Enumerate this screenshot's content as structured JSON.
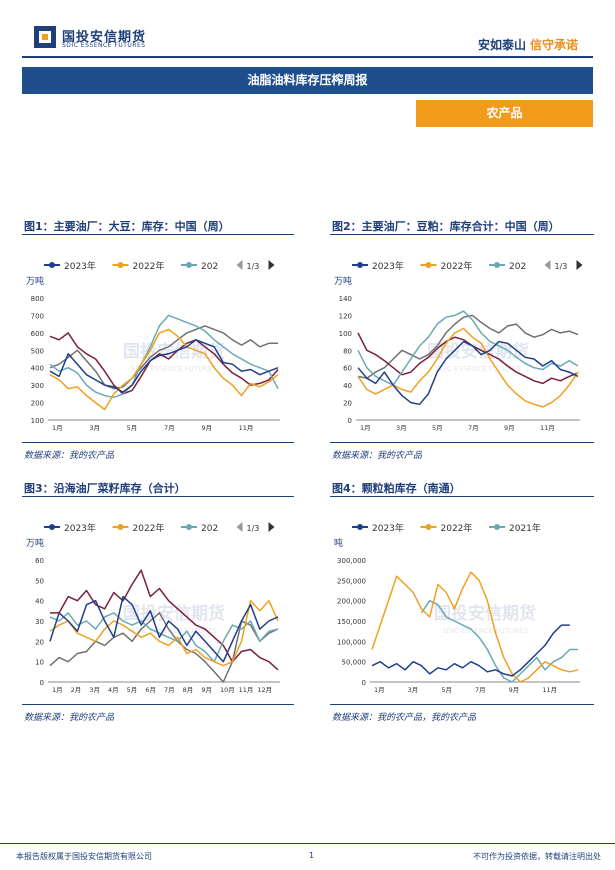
{
  "header": {
    "logo_cn": "国投安信期货",
    "logo_en": "SDIC ESSENCE FUTURES",
    "slogan_part1": "安如泰山",
    "slogan_part2": "信守承诺",
    "banner": "油脂油料库存压榨周报",
    "tag": "农产品"
  },
  "figures": [
    {
      "title": "图1：主要油厂：大豆：库存：中国（周）",
      "source": "数据来源：我的农产品",
      "watermark": "国投安信期货",
      "watermark_en": "SDIC ESSENCE FUTURES",
      "chart_data": {
        "type": "line",
        "unit_label": "万吨",
        "legend": [
          "2023年",
          "2022年",
          "202"
        ],
        "legend_page": "1/3",
        "ylim": [
          100,
          800
        ],
        "yticks": [
          "800",
          "700",
          "600",
          "500",
          "400",
          "300",
          "200",
          "100"
        ],
        "xticks": [
          "1月",
          "3月",
          "5月",
          "7月",
          "9月",
          "11月"
        ],
        "series": [
          {
            "name": "2023年",
            "color": "#1f3f8c",
            "values": [
              380,
              350,
              480,
              420,
              360,
              330,
              300,
              290,
              260,
              300,
              380,
              440,
              470,
              480,
              500,
              520,
              560,
              540,
              520,
              430,
              420,
              380,
              390,
              360,
              380,
              400
            ]
          },
          {
            "name": "2022年",
            "color": "#f0a020",
            "values": [
              360,
              330,
              280,
              290,
              240,
              200,
              160,
              250,
              300,
              340,
              420,
              500,
              600,
              620,
              580,
              520,
              500,
              480,
              400,
              340,
              300,
              240,
              310,
              290,
              320,
              360
            ]
          },
          {
            "name": "202",
            "color": "#6aa9b4",
            "values": [
              420,
              380,
              400,
              370,
              300,
              260,
              240,
              230,
              250,
              300,
              420,
              520,
              640,
              700,
              680,
              660,
              640,
              610,
              560,
              520,
              480,
              450,
              420,
              400,
              380,
              280
            ]
          },
          {
            "name": "",
            "color": "#7a1f3d",
            "values": [
              580,
              560,
              600,
              520,
              480,
              450,
              380,
              300,
              250,
              270,
              350,
              440,
              480,
              450,
              500,
              540,
              560,
              520,
              480,
              420,
              370,
              340,
              300,
              310,
              330,
              390
            ]
          },
          {
            "name": "",
            "color": "#707070",
            "values": [
              400,
              420,
              460,
              500,
              440,
              380,
              300,
              280,
              290,
              340,
              400,
              460,
              500,
              520,
              560,
              600,
              620,
              640,
              620,
              600,
              560,
              530,
              560,
              520,
              540,
              540
            ]
          }
        ]
      }
    },
    {
      "title": "图2：主要油厂：豆粕：库存合计：中国（周）",
      "source": "数据来源：我的农产品",
      "watermark": "国投安信期货",
      "watermark_en": "SDIC ESSENCE FUTURES",
      "chart_data": {
        "type": "line",
        "unit_label": "万吨",
        "legend": [
          "2023年",
          "2022年",
          "202"
        ],
        "legend_page": "1/3",
        "ylim": [
          0,
          140
        ],
        "yticks": [
          "140",
          "120",
          "100",
          "80",
          "60",
          "40",
          "20",
          "0"
        ],
        "xticks": [
          "1月",
          "3月",
          "5月",
          "7月",
          "9月",
          "11月"
        ],
        "series": [
          {
            "name": "2023年",
            "color": "#1f3f8c",
            "values": [
              60,
              48,
              42,
              55,
              40,
              28,
              20,
              18,
              30,
              55,
              70,
              80,
              90,
              85,
              75,
              80,
              90,
              88,
              80,
              72,
              70,
              62,
              68,
              58,
              55,
              50
            ]
          },
          {
            "name": "2022年",
            "color": "#f0a020",
            "values": [
              50,
              35,
              30,
              35,
              40,
              35,
              32,
              45,
              55,
              70,
              88,
              100,
              105,
              95,
              88,
              70,
              55,
              40,
              30,
              22,
              18,
              15,
              20,
              28,
              40,
              55
            ]
          },
          {
            "name": "202",
            "color": "#6aa9b4",
            "values": [
              80,
              60,
              50,
              45,
              40,
              55,
              70,
              85,
              95,
              110,
              118,
              120,
              125,
              115,
              100,
              90,
              85,
              80,
              72,
              65,
              60,
              58,
              65,
              62,
              68,
              62
            ]
          },
          {
            "name": "",
            "color": "#7a1f3d",
            "values": [
              100,
              80,
              75,
              68,
              60,
              52,
              55,
              65,
              72,
              82,
              90,
              95,
              92,
              85,
              80,
              75,
              70,
              62,
              55,
              50,
              45,
              42,
              48,
              45,
              50,
              54
            ]
          },
          {
            "name": "",
            "color": "#707070",
            "values": [
              50,
              48,
              55,
              60,
              70,
              80,
              75,
              70,
              75,
              85,
              100,
              110,
              118,
              120,
              112,
              105,
              100,
              108,
              110,
              100,
              95,
              98,
              104,
              100,
              102,
              98
            ]
          }
        ]
      }
    },
    {
      "title": "图3：沿海油厂菜籽库存（合计）",
      "source": "数据来源：我的农产品",
      "watermark": "国投安信期货",
      "watermark_en": "SDIC ESSENCE FUTURES",
      "chart_data": {
        "type": "line",
        "unit_label": "万吨",
        "legend": [
          "2023年",
          "2022年",
          "202"
        ],
        "legend_page": "1/3",
        "ylim": [
          0,
          60
        ],
        "yticks": [
          "60",
          "50",
          "40",
          "30",
          "20",
          "10",
          "0"
        ],
        "xticks": [
          "1月",
          "2月",
          "3月",
          "4月",
          "5月",
          "6月",
          "7月",
          "8月",
          "9月",
          "10月",
          "11月",
          "12月"
        ],
        "series": [
          {
            "name": "2023年",
            "color": "#1f3f8c",
            "values": [
              20,
              34,
              30,
              25,
              38,
              40,
              30,
              22,
              42,
              38,
              28,
              35,
              22,
              30,
              26,
              18,
              25,
              20,
              15,
              10,
              20,
              30,
              38,
              26,
              30,
              32
            ]
          },
          {
            "name": "2022年",
            "color": "#f0a020",
            "values": [
              25,
              28,
              30,
              24,
              22,
              20,
              26,
              30,
              28,
              25,
              22,
              24,
              20,
              18,
              22,
              14,
              16,
              12,
              10,
              8,
              10,
              20,
              40,
              35,
              40,
              30
            ]
          },
          {
            "name": "202",
            "color": "#6aa9b4",
            "values": [
              32,
              30,
              34,
              28,
              30,
              26,
              32,
              34,
              30,
              28,
              30,
              26,
              24,
              22,
              20,
              25,
              18,
              15,
              10,
              20,
              28,
              26,
              30,
              20,
              25,
              26
            ]
          },
          {
            "name": "",
            "color": "#7a1f3d",
            "values": [
              34,
              34,
              42,
              40,
              45,
              38,
              36,
              44,
              40,
              48,
              55,
              42,
              46,
              40,
              36,
              32,
              28,
              26,
              22,
              18,
              10,
              15,
              16,
              12,
              10,
              6
            ]
          },
          {
            "name": "",
            "color": "#707070",
            "values": [
              8,
              12,
              10,
              14,
              15,
              20,
              18,
              22,
              24,
              20,
              26,
              30,
              34,
              26,
              20,
              16,
              14,
              10,
              5,
              0,
              10,
              30,
              28,
              20,
              24,
              26
            ]
          }
        ]
      }
    },
    {
      "title": "图4：颗粒粕库存（南通）",
      "source": "数据来源：我的农产品，我的农产品",
      "watermark": "国投安信期货",
      "watermark_en": "SDIC ESSENCE FUTURES",
      "chart_data": {
        "type": "line",
        "unit_label": "吨",
        "legend": [
          "2023年",
          "2022年",
          "2021年"
        ],
        "legend_page": "",
        "ylim": [
          0,
          300000
        ],
        "yticks": [
          "300,000",
          "250,000",
          "200,000",
          "150,000",
          "100,000",
          "50,000",
          "0"
        ],
        "xticks": [
          "1月",
          "3月",
          "5月",
          "7月",
          "9月",
          "11月"
        ],
        "series": [
          {
            "name": "2023年",
            "color": "#1f3f8c",
            "values": [
              40000,
              50000,
              35000,
              45000,
              30000,
              50000,
              40000,
              20000,
              35000,
              30000,
              45000,
              35000,
              50000,
              40000,
              25000,
              30000,
              20000,
              15000,
              30000,
              50000,
              70000,
              90000,
              120000,
              140000,
              140000,
              null
            ]
          },
          {
            "name": "2022年",
            "color": "#f0a020",
            "values": [
              80000,
              140000,
              200000,
              260000,
              240000,
              220000,
              180000,
              160000,
              240000,
              220000,
              180000,
              230000,
              270000,
              250000,
              200000,
              120000,
              60000,
              20000,
              0,
              10000,
              30000,
              50000,
              40000,
              30000,
              25000,
              30000
            ]
          },
          {
            "name": "2021年",
            "color": "#6aa9b4",
            "values": [
              null,
              null,
              null,
              null,
              null,
              null,
              170000,
              200000,
              190000,
              160000,
              150000,
              140000,
              130000,
              110000,
              80000,
              40000,
              10000,
              0,
              20000,
              40000,
              60000,
              30000,
              50000,
              60000,
              80000,
              80000
            ]
          }
        ]
      }
    }
  ],
  "footer": {
    "left": "本报告版权属于国投安信期货有限公司",
    "page": "1",
    "right": "不可作为投资依据，转载请注明出处"
  }
}
